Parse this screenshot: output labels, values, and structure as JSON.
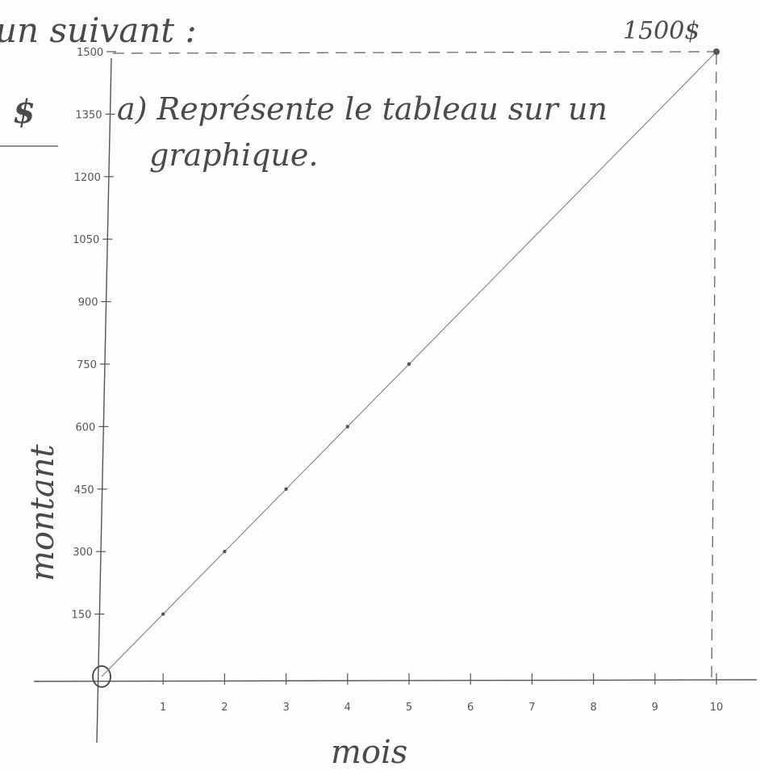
{
  "header": {
    "top_left": "un suivant :",
    "instruction": "a) Représente le tableau sur un graphique."
  },
  "chart_data": {
    "type": "line",
    "title": "",
    "xlabel": "mois",
    "ylabel": "montant",
    "y_unit_symbol": "$",
    "endpoint_label": "1500$",
    "x_ticks": [
      "1",
      "2",
      "3",
      "4",
      "5",
      "6",
      "7",
      "8",
      "9",
      "10"
    ],
    "y_ticks": [
      "150",
      "300",
      "450",
      "600",
      "750",
      "900",
      "1050",
      "1200",
      "1350",
      "1500"
    ],
    "xlim": [
      0,
      10
    ],
    "ylim": [
      0,
      1500
    ],
    "grid": false,
    "series": [
      {
        "x": [
          0,
          1,
          2,
          3,
          4,
          5,
          10
        ],
        "y": [
          0,
          150,
          300,
          450,
          600,
          750,
          1500
        ]
      }
    ]
  }
}
